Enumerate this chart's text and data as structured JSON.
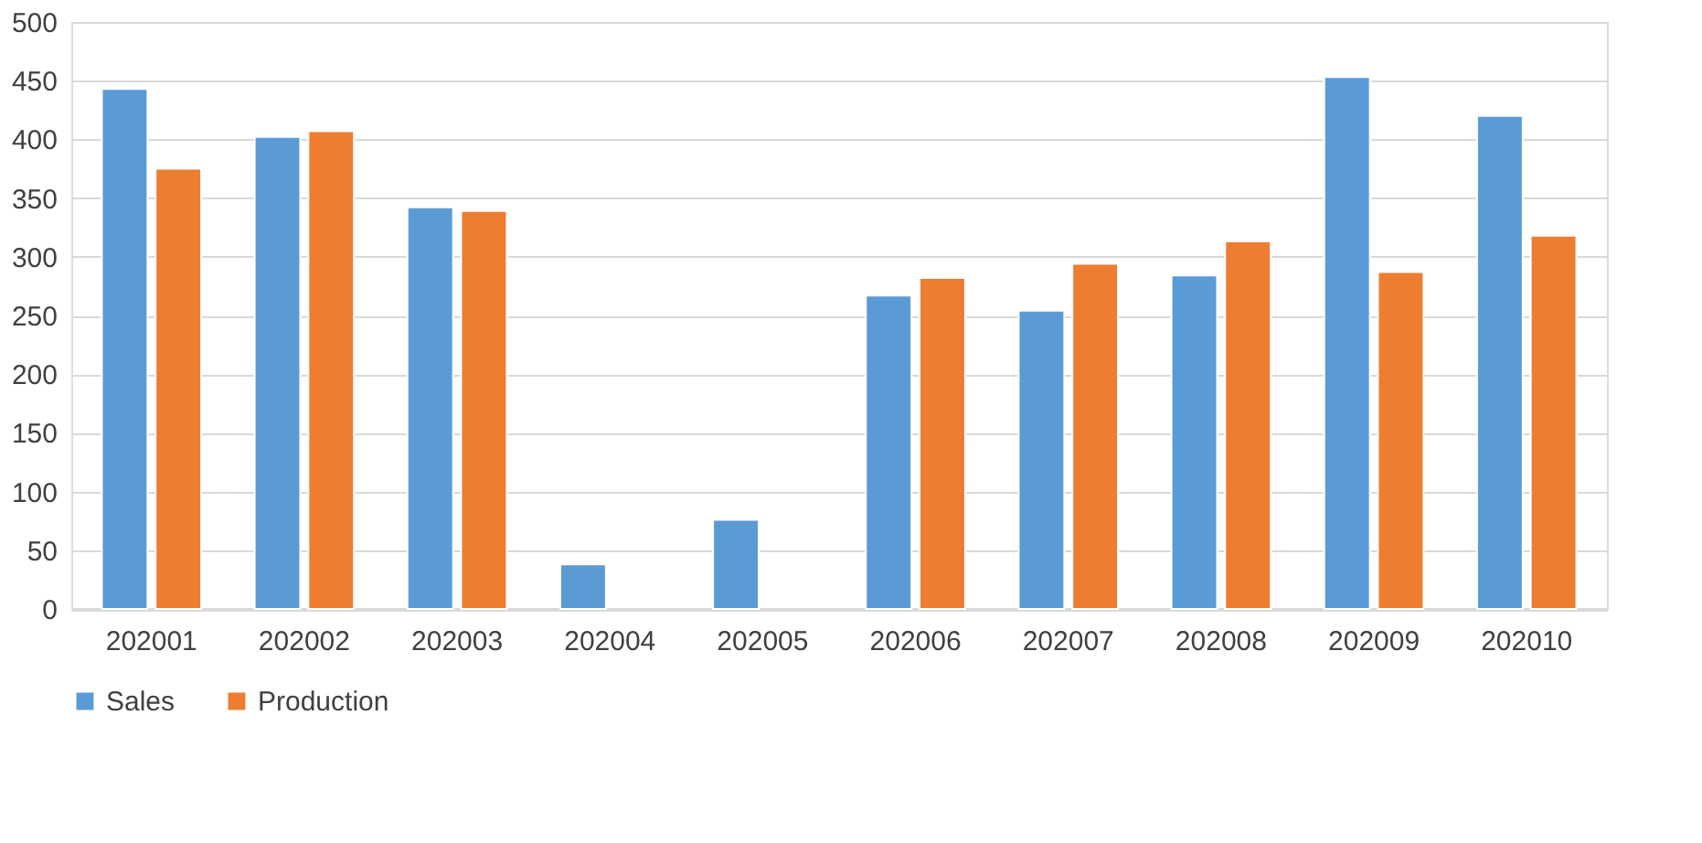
{
  "chart_data": {
    "type": "bar",
    "categories": [
      "202001",
      "202002",
      "202003",
      "202004",
      "202005",
      "202006",
      "202007",
      "202008",
      "202009",
      "202010"
    ],
    "series": [
      {
        "name": "Sales",
        "color": "#5b9bd5",
        "values": [
          443,
          402,
          342,
          38,
          76,
          267,
          254,
          284,
          453,
          420
        ]
      },
      {
        "name": "Production",
        "color": "#ed7d31",
        "values": [
          375,
          407,
          339,
          null,
          null,
          282,
          294,
          313,
          287,
          318
        ]
      }
    ],
    "ylim": [
      0,
      500
    ],
    "yticks": [
      0,
      50,
      100,
      150,
      200,
      250,
      300,
      350,
      400,
      450,
      500
    ],
    "grid": "y",
    "legend": "bottom"
  }
}
